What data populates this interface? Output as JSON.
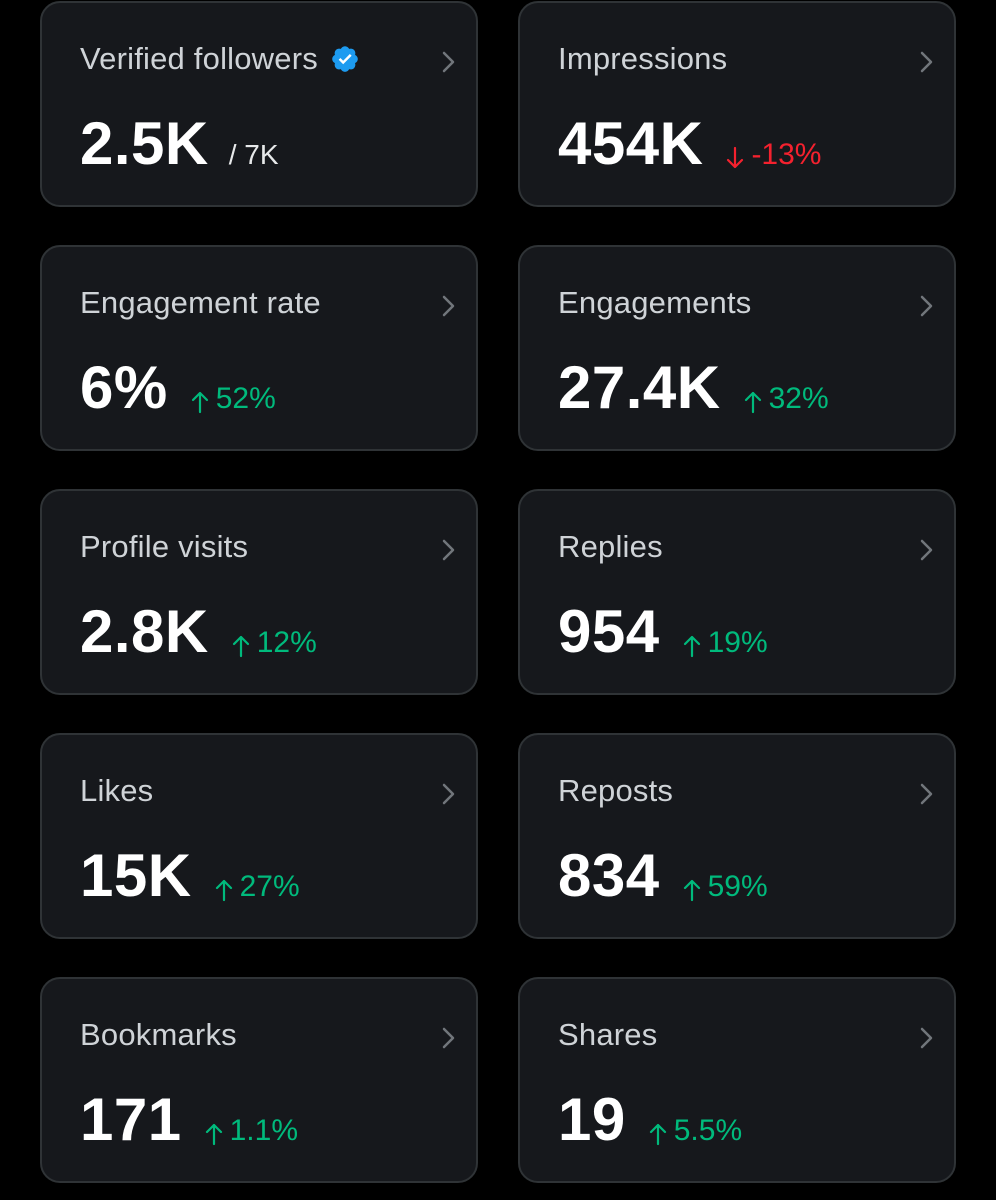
{
  "colors": {
    "background": "#000000",
    "card": "#16181c",
    "border": "#2f3336",
    "up": "#00ba7c",
    "down": "#f4212e",
    "verified": "#1d9bf0"
  },
  "cards": [
    {
      "label": "Verified followers",
      "value": "2.5K",
      "secondary": "/ 7K",
      "icon": "verified-badge-icon"
    },
    {
      "label": "Impressions",
      "value": "454K",
      "delta": "-13%",
      "direction": "down"
    },
    {
      "label": "Engagement rate",
      "value": "6%",
      "delta": "52%",
      "direction": "up"
    },
    {
      "label": "Engagements",
      "value": "27.4K",
      "delta": "32%",
      "direction": "up"
    },
    {
      "label": "Profile visits",
      "value": "2.8K",
      "delta": "12%",
      "direction": "up"
    },
    {
      "label": "Replies",
      "value": "954",
      "delta": "19%",
      "direction": "up"
    },
    {
      "label": "Likes",
      "value": "15K",
      "delta": "27%",
      "direction": "up"
    },
    {
      "label": "Reposts",
      "value": "834",
      "delta": "59%",
      "direction": "up"
    },
    {
      "label": "Bookmarks",
      "value": "171",
      "delta": "1.1%",
      "direction": "up"
    },
    {
      "label": "Shares",
      "value": "19",
      "delta": "5.5%",
      "direction": "up"
    }
  ]
}
